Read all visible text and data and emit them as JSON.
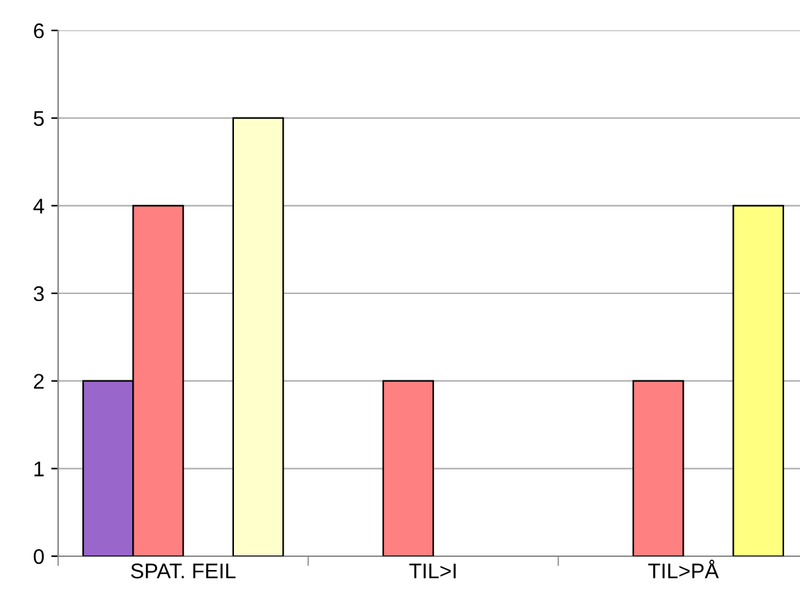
{
  "chart_data": {
    "type": "bar",
    "categories": [
      "SPAT. FEIL",
      "TIL>I",
      "TIL>PÅ"
    ],
    "series": [
      {
        "color": "#9966cc",
        "values": [
          2,
          null,
          null
        ]
      },
      {
        "color": "#ff8080",
        "values": [
          4,
          2,
          2
        ]
      },
      {
        "color": "#ffffcc",
        "values": [
          null,
          null,
          null
        ]
      },
      {
        "colors": [
          "#ffffcc",
          "#ffffcc",
          "#ffff80"
        ],
        "values": [
          5,
          null,
          4
        ]
      }
    ],
    "ylim": [
      0,
      6
    ],
    "yticks": [
      0,
      1,
      2,
      3,
      4,
      5,
      6
    ],
    "grid": "y",
    "legend": false
  }
}
